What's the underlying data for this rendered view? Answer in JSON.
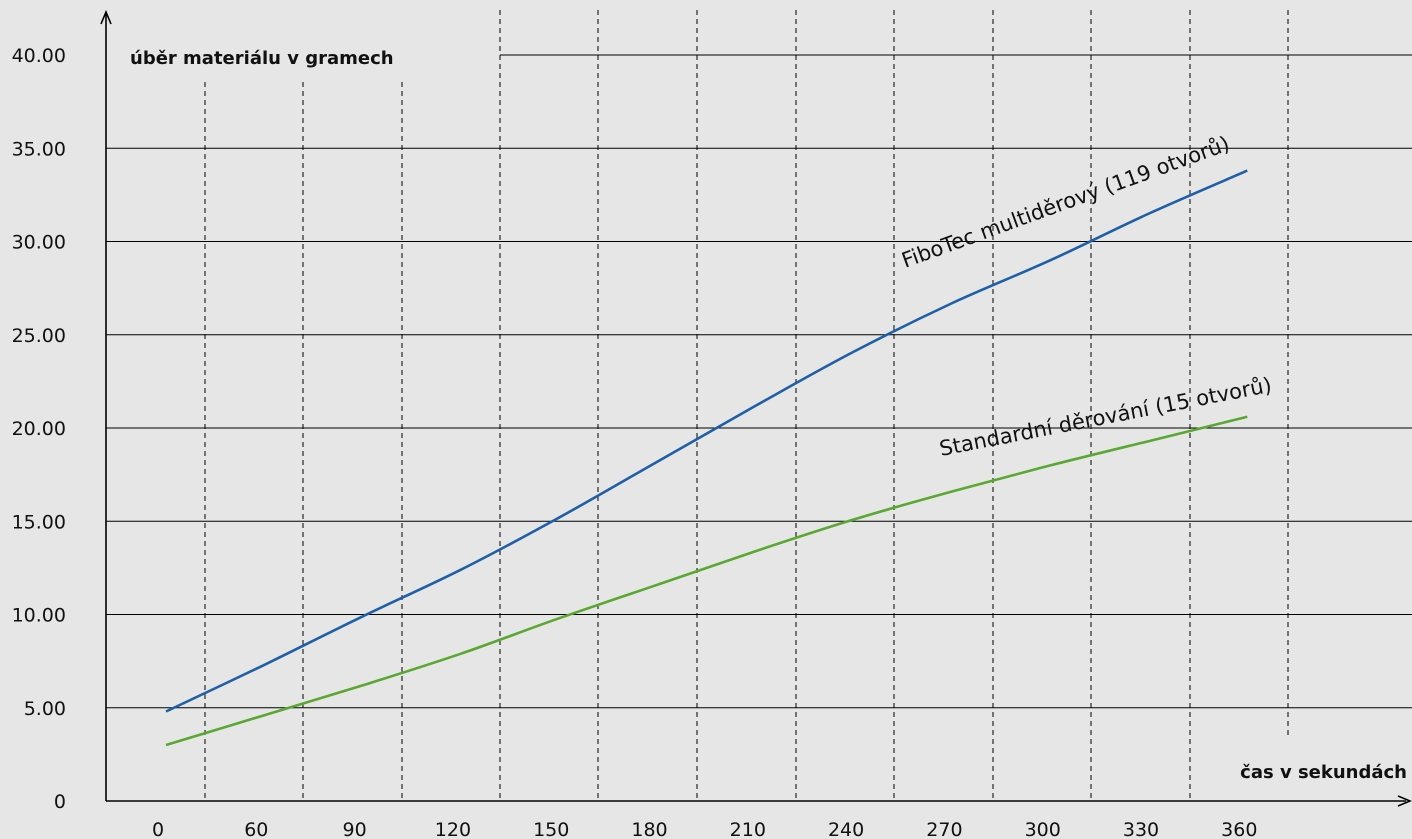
{
  "chart_data": {
    "type": "line",
    "ylabel": "úběr materiálu v gramech",
    "xlabel": "čas v sekundách",
    "x_tick_labels": [
      "0",
      "60",
      "90",
      "120",
      "150",
      "180",
      "210",
      "240",
      "270",
      "300",
      "330",
      "360"
    ],
    "y_tick_labels": [
      "0",
      "5.00",
      "10.00",
      "15.00",
      "20.00",
      "25.00",
      "30.00",
      "35.00",
      "40.00"
    ],
    "ylim": [
      0,
      40
    ],
    "grid": true,
    "series": [
      {
        "name": "FiboTec multiděrový (119 otvorů)",
        "color": "#1f5fa8",
        "x_index": [
          0,
          1,
          2,
          3,
          4,
          5,
          6,
          7,
          8,
          9,
          10,
          11
        ],
        "values": [
          4.8,
          7.3,
          9.9,
          12.4,
          15.2,
          18.2,
          21.2,
          24.1,
          26.7,
          29.0,
          31.5,
          33.8
        ]
      },
      {
        "name": "Standardní děrování (15 otvorů)",
        "color": "#5aa832",
        "x_index": [
          0,
          1,
          2,
          3,
          4,
          5,
          6,
          7,
          8,
          9,
          10,
          11
        ],
        "values": [
          3.0,
          4.6,
          6.2,
          7.9,
          9.8,
          11.6,
          13.4,
          15.1,
          16.6,
          18.0,
          19.3,
          20.6
        ]
      }
    ]
  }
}
